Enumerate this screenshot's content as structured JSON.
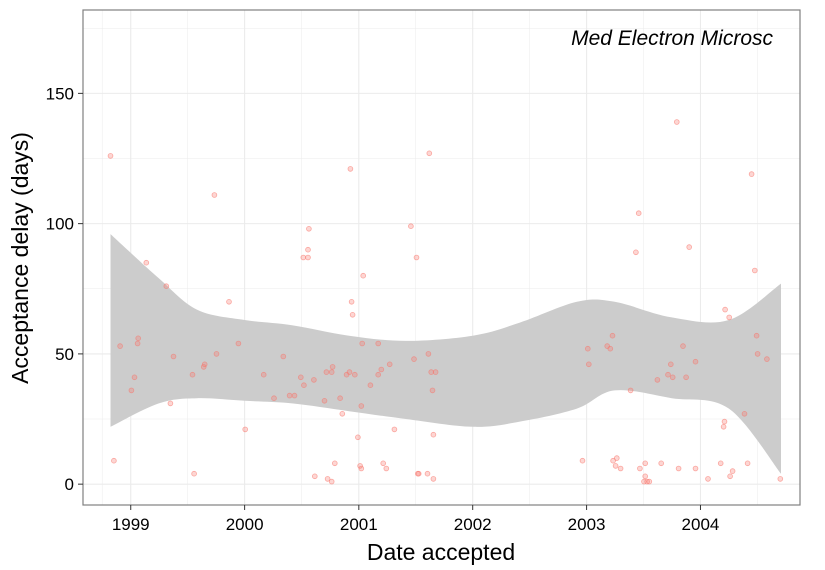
{
  "chart_data": {
    "type": "scatter",
    "annotation": "Med Electron Microsc",
    "xlabel": "Date accepted",
    "ylabel": "Acceptance delay (days)",
    "xlim": [
      "1998-08-01",
      "2004-11-15"
    ],
    "ylim": [
      -8,
      182
    ],
    "x_ticks": [
      {
        "date": "1999-01-01",
        "label": "1999"
      },
      {
        "date": "2000-01-01",
        "label": "2000"
      },
      {
        "date": "2001-01-01",
        "label": "2001"
      },
      {
        "date": "2002-01-01",
        "label": "2002"
      },
      {
        "date": "2003-01-01",
        "label": "2003"
      },
      {
        "date": "2004-01-01",
        "label": "2004"
      }
    ],
    "y_ticks": [
      0,
      50,
      100,
      150
    ],
    "grid": true,
    "colors": {
      "points": "#f8766d",
      "band": "#cccccc",
      "panel_border": "#808080",
      "grid": "#ebebeb"
    },
    "points": [
      [
        "1998-10-28",
        126
      ],
      [
        "1998-11-08",
        9
      ],
      [
        "1998-11-28",
        53
      ],
      [
        "1999-01-03",
        36
      ],
      [
        "1999-01-13",
        41
      ],
      [
        "1999-01-23",
        54
      ],
      [
        "1999-01-25",
        56
      ],
      [
        "1999-02-20",
        85
      ],
      [
        "1999-04-25",
        76
      ],
      [
        "1999-05-08",
        31
      ],
      [
        "1999-05-18",
        49
      ],
      [
        "1999-07-18",
        42
      ],
      [
        "1999-07-23",
        4
      ],
      [
        "1999-08-23",
        45
      ],
      [
        "1999-08-26",
        46
      ],
      [
        "1999-09-26",
        111
      ],
      [
        "1999-10-03",
        50
      ],
      [
        "1999-11-12",
        70
      ],
      [
        "1999-12-12",
        54
      ],
      [
        "2000-01-03",
        21
      ],
      [
        "2000-03-02",
        42
      ],
      [
        "2000-04-04",
        33
      ],
      [
        "2000-05-04",
        49
      ],
      [
        "2000-05-24",
        34
      ],
      [
        "2000-06-09",
        34
      ],
      [
        "2000-06-29",
        41
      ],
      [
        "2000-07-07",
        87
      ],
      [
        "2000-07-09",
        38
      ],
      [
        "2000-07-22",
        87
      ],
      [
        "2000-07-22",
        90
      ],
      [
        "2000-07-25",
        98
      ],
      [
        "2000-08-10",
        40
      ],
      [
        "2000-08-13",
        3
      ],
      [
        "2000-09-13",
        32
      ],
      [
        "2000-09-19",
        43
      ],
      [
        "2000-09-23",
        2
      ],
      [
        "2000-10-06",
        1
      ],
      [
        "2000-10-06",
        43
      ],
      [
        "2000-10-09",
        45
      ],
      [
        "2000-10-16",
        8
      ],
      [
        "2000-11-02",
        33
      ],
      [
        "2000-11-09",
        27
      ],
      [
        "2000-11-23",
        42
      ],
      [
        "2000-12-02",
        43
      ],
      [
        "2000-12-05",
        121
      ],
      [
        "2000-12-09",
        70
      ],
      [
        "2000-12-12",
        65
      ],
      [
        "2000-12-19",
        42
      ],
      [
        "2000-12-29",
        18
      ],
      [
        "2001-01-05",
        7
      ],
      [
        "2001-01-09",
        6
      ],
      [
        "2001-01-09",
        30
      ],
      [
        "2001-01-12",
        54
      ],
      [
        "2001-01-15",
        80
      ],
      [
        "2001-02-07",
        38
      ],
      [
        "2001-03-04",
        42
      ],
      [
        "2001-03-04",
        54
      ],
      [
        "2001-03-14",
        44
      ],
      [
        "2001-03-20",
        8
      ],
      [
        "2001-03-30",
        6
      ],
      [
        "2001-04-10",
        46
      ],
      [
        "2001-04-25",
        21
      ],
      [
        "2001-06-17",
        99
      ],
      [
        "2001-06-27",
        48
      ],
      [
        "2001-07-05",
        87
      ],
      [
        "2001-07-09",
        4
      ],
      [
        "2001-07-12",
        4
      ],
      [
        "2001-08-09",
        4
      ],
      [
        "2001-08-12",
        50
      ],
      [
        "2001-08-15",
        127
      ],
      [
        "2001-08-21",
        43
      ],
      [
        "2001-08-25",
        36
      ],
      [
        "2001-08-28",
        19
      ],
      [
        "2001-08-28",
        2
      ],
      [
        "2001-09-04",
        43
      ],
      [
        "2002-12-19",
        9
      ],
      [
        "2003-01-05",
        52
      ],
      [
        "2003-01-08",
        46
      ],
      [
        "2003-03-08",
        53
      ],
      [
        "2003-03-18",
        52
      ],
      [
        "2003-03-25",
        57
      ],
      [
        "2003-03-27",
        9
      ],
      [
        "2003-04-04",
        7
      ],
      [
        "2003-04-08",
        10
      ],
      [
        "2003-04-20",
        6
      ],
      [
        "2003-05-22",
        36
      ],
      [
        "2003-06-08",
        89
      ],
      [
        "2003-06-17",
        104
      ],
      [
        "2003-06-21",
        6
      ],
      [
        "2003-07-04",
        1
      ],
      [
        "2003-07-08",
        3
      ],
      [
        "2003-07-08",
        8
      ],
      [
        "2003-07-14",
        1
      ],
      [
        "2003-07-21",
        1
      ],
      [
        "2003-08-16",
        40
      ],
      [
        "2003-08-28",
        8
      ],
      [
        "2003-09-19",
        42
      ],
      [
        "2003-09-28",
        46
      ],
      [
        "2003-10-04",
        41
      ],
      [
        "2003-10-17",
        139
      ],
      [
        "2003-10-23",
        6
      ],
      [
        "2003-11-06",
        53
      ],
      [
        "2003-11-16",
        41
      ],
      [
        "2003-11-26",
        91
      ],
      [
        "2003-12-16",
        47
      ],
      [
        "2003-12-16",
        6
      ],
      [
        "2004-01-25",
        2
      ],
      [
        "2004-03-06",
        8
      ],
      [
        "2004-03-15",
        22
      ],
      [
        "2004-03-18",
        24
      ],
      [
        "2004-03-20",
        67
      ],
      [
        "2004-04-02",
        64
      ],
      [
        "2004-04-05",
        3
      ],
      [
        "2004-04-13",
        5
      ],
      [
        "2004-05-21",
        27
      ],
      [
        "2004-05-31",
        8
      ],
      [
        "2004-06-13",
        119
      ],
      [
        "2004-06-23",
        82
      ],
      [
        "2004-06-29",
        57
      ],
      [
        "2004-07-02",
        50
      ],
      [
        "2004-08-01",
        48
      ],
      [
        "2004-09-13",
        2
      ]
    ],
    "confidence_band": {
      "x": [
        "1998-10-28",
        "1999-04-01",
        "1999-08-01",
        "2000-01-01",
        "2000-06-01",
        "2000-12-01",
        "2001-06-01",
        "2002-01-01",
        "2002-06-01",
        "2002-12-01",
        "2003-04-01",
        "2003-10-01",
        "2004-04-01",
        "2004-09-15"
      ],
      "upper": [
        96,
        79,
        67,
        63,
        61,
        57,
        55,
        57,
        62,
        70,
        70,
        64,
        63,
        77
      ],
      "lower": [
        22,
        31,
        33,
        32,
        31,
        28,
        25,
        22,
        24,
        29,
        36,
        33,
        29,
        4
      ]
    }
  }
}
